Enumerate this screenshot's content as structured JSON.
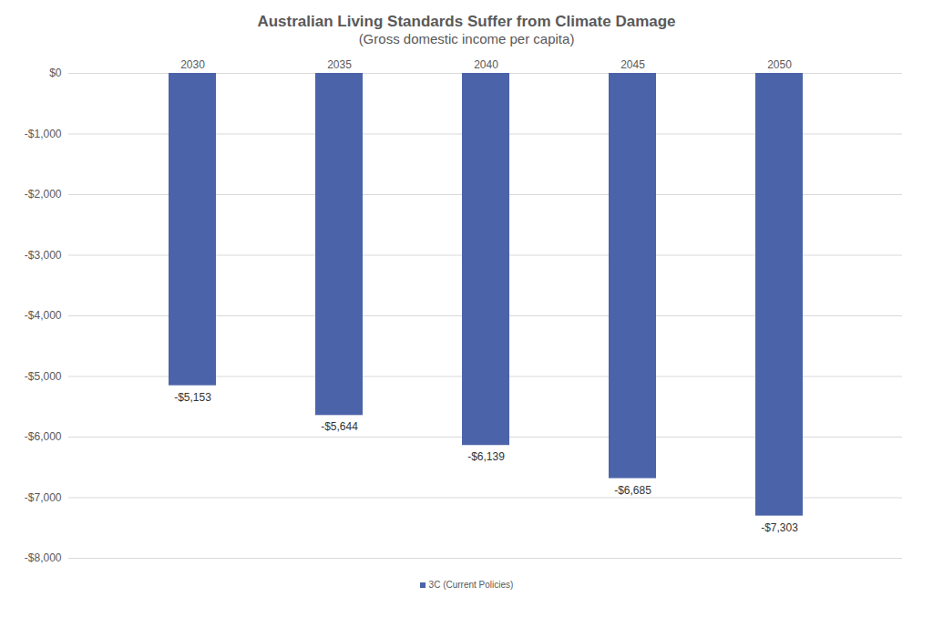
{
  "chart_data": {
    "type": "bar",
    "title": "Australian Living Standards Suffer from Climate Damage",
    "subtitle": "(Gross domestic income per capita)",
    "categories": [
      "2030",
      "2035",
      "2040",
      "2045",
      "2050"
    ],
    "series": [
      {
        "name": "3C (Current Policies)",
        "color": "#4b63a8",
        "values": [
          -5153,
          -5644,
          -6139,
          -6685,
          -7303
        ],
        "value_labels": [
          "-$5,153",
          "-$5,644",
          "-$6,139",
          "-$6,685",
          "-$7,303"
        ]
      }
    ],
    "ylim": [
      -8000,
      0
    ],
    "yticks": [
      {
        "value": 0,
        "label": "$0"
      },
      {
        "value": -1000,
        "label": "-$1,000"
      },
      {
        "value": -2000,
        "label": "-$2,000"
      },
      {
        "value": -3000,
        "label": "-$3,000"
      },
      {
        "value": -4000,
        "label": "-$4,000"
      },
      {
        "value": -5000,
        "label": "-$5,000"
      },
      {
        "value": -6000,
        "label": "-$6,000"
      },
      {
        "value": -7000,
        "label": "-$7,000"
      },
      {
        "value": -8000,
        "label": "-$8,000"
      }
    ],
    "grid": true,
    "data_labels": true,
    "legend": "bottom"
  }
}
